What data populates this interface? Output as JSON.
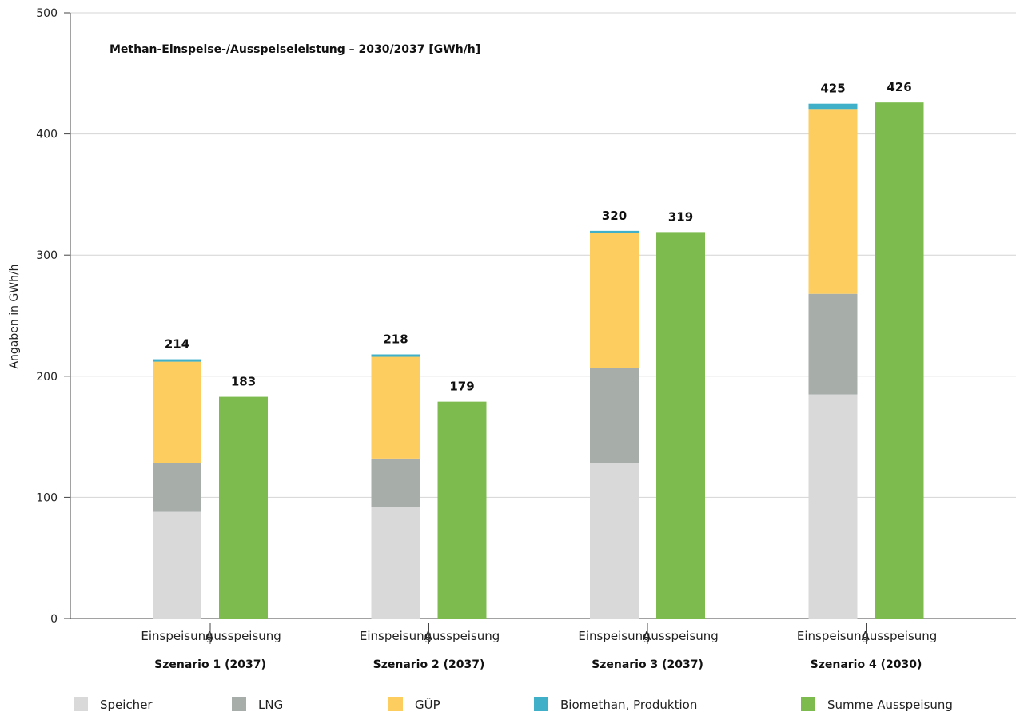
{
  "chart_data": {
    "type": "bar",
    "title": "Methan-Einspeise-/Ausspeiseleistung – 2030/2037 [GWh/h]",
    "ylabel": "Angaben in GWh/h",
    "ylim": [
      0,
      500
    ],
    "yticks": [
      0,
      100,
      200,
      300,
      400,
      500
    ],
    "grid": true,
    "legend_position": "bottom",
    "bar_types": [
      "Einspeisung",
      "Ausspeisung"
    ],
    "groups": [
      {
        "name": "Szenario 1 (2037)",
        "einspeisung": {
          "Speicher": 88,
          "LNG": 40,
          "GÜP": 84,
          "Biomethan, Produktion": 2,
          "total": 214
        },
        "ausspeisung": {
          "Summe Ausspeisung": 183,
          "total": 183
        }
      },
      {
        "name": "Szenario 2 (2037)",
        "einspeisung": {
          "Speicher": 92,
          "LNG": 40,
          "GÜP": 84,
          "Biomethan, Produktion": 2,
          "total": 218
        },
        "ausspeisung": {
          "Summe Ausspeisung": 179,
          "total": 179
        }
      },
      {
        "name": "Szenario 3 (2037)",
        "einspeisung": {
          "Speicher": 128,
          "LNG": 79,
          "GÜP": 111,
          "Biomethan, Produktion": 2,
          "total": 320
        },
        "ausspeisung": {
          "Summe Ausspeisung": 319,
          "total": 319
        }
      },
      {
        "name": "Szenario 4 (2030)",
        "einspeisung": {
          "Speicher": 185,
          "LNG": 83,
          "GÜP": 152,
          "Biomethan, Produktion": 5,
          "total": 425
        },
        "ausspeisung": {
          "Summe Ausspeisung": 426,
          "total": 426
        }
      }
    ],
    "series": [
      {
        "name": "Speicher",
        "color": "#d8d9d8"
      },
      {
        "name": "LNG",
        "color": "#a7aeaa"
      },
      {
        "name": "GÜP",
        "color": "#fecd60"
      },
      {
        "name": "Biomethan, Produktion",
        "color": "#3fb0c8"
      },
      {
        "name": "Summe Ausspeisung",
        "color": "#7dbb4f"
      }
    ]
  }
}
